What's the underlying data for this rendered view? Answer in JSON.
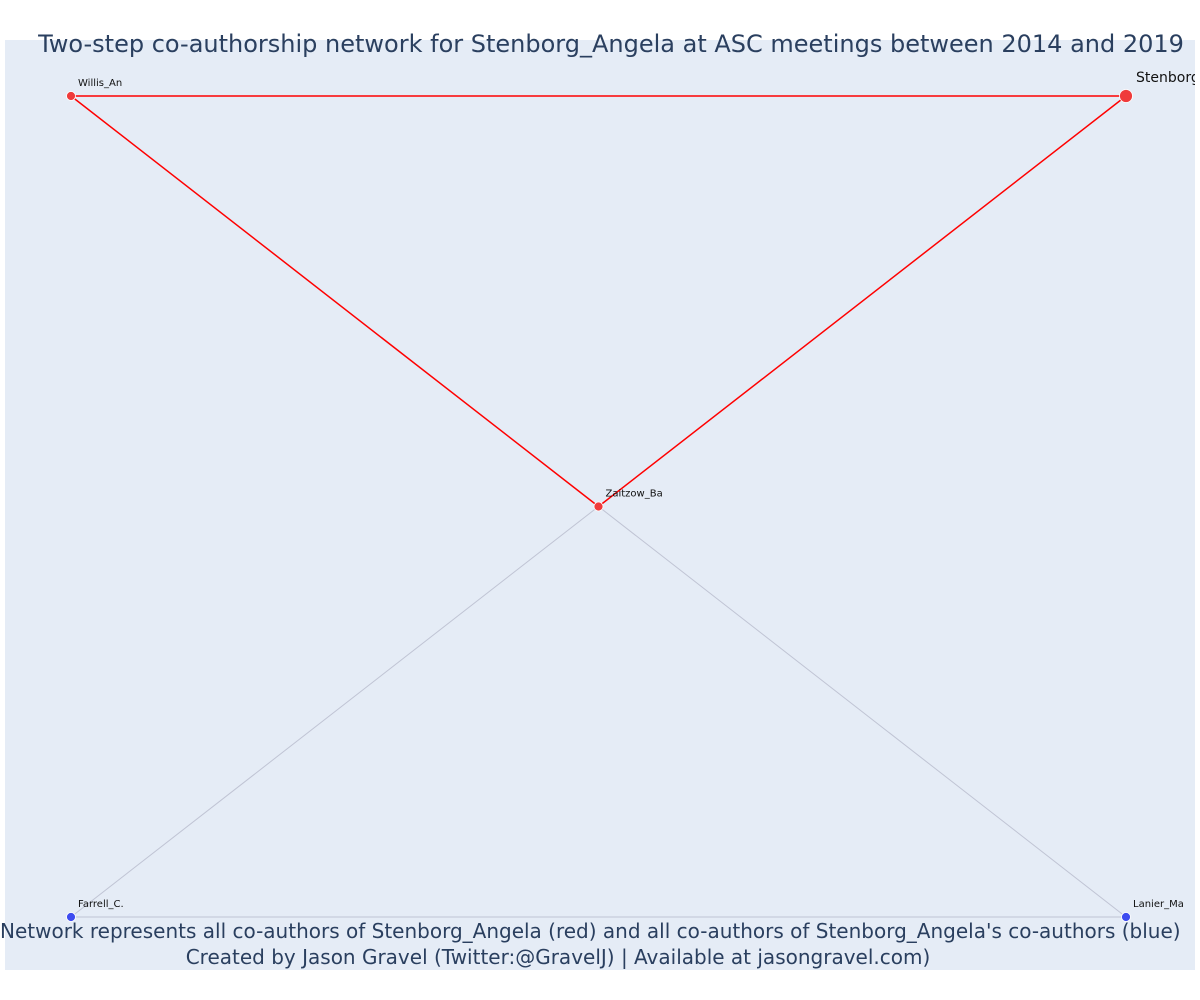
{
  "title": "Two-step co-authorship network for Stenborg_Angela at ASC meetings between 2014 and 2019",
  "captions": [
    "Network represents all co-authors of Stenborg_Angela (red) and all co-authors of Stenborg_Angela's co-authors (blue)",
    "Created by Jason Gravel (Twitter:@GravelJ) | Available at jasongravel.com)"
  ],
  "colors": {
    "first_step": "#ef3b3b",
    "second_step": "#3e4cf0",
    "first_step_edge": "#ff0000",
    "second_step_edge": "#c0c4d4",
    "plot_background": "#e5ecf6",
    "text": "#2a3f5f"
  },
  "chart_data": {
    "type": "network",
    "grid": false,
    "nodes": [
      {
        "id": "stenborg",
        "label": "Stenborg_Angela",
        "group": "focal",
        "x": 1,
        "y": 1
      },
      {
        "id": "willis",
        "label": "Willis_An",
        "group": "first_step",
        "x": 0,
        "y": 1
      },
      {
        "id": "zaitzow",
        "label": "Zaitzow_Ba",
        "group": "first_step",
        "x": 0.5,
        "y": 0.5
      },
      {
        "id": "farrell",
        "label": "Farrell_C.",
        "group": "second_step",
        "x": 0,
        "y": 0
      },
      {
        "id": "lanier",
        "label": "Lanier_Ma",
        "group": "second_step",
        "x": 1,
        "y": 0
      }
    ],
    "edges": [
      {
        "source": "willis",
        "target": "stenborg",
        "group": "first_step"
      },
      {
        "source": "willis",
        "target": "zaitzow",
        "group": "first_step"
      },
      {
        "source": "zaitzow",
        "target": "stenborg",
        "group": "first_step"
      },
      {
        "source": "zaitzow",
        "target": "farrell",
        "group": "second_step"
      },
      {
        "source": "zaitzow",
        "target": "lanier",
        "group": "second_step"
      },
      {
        "source": "farrell",
        "target": "lanier",
        "group": "second_step"
      }
    ]
  }
}
